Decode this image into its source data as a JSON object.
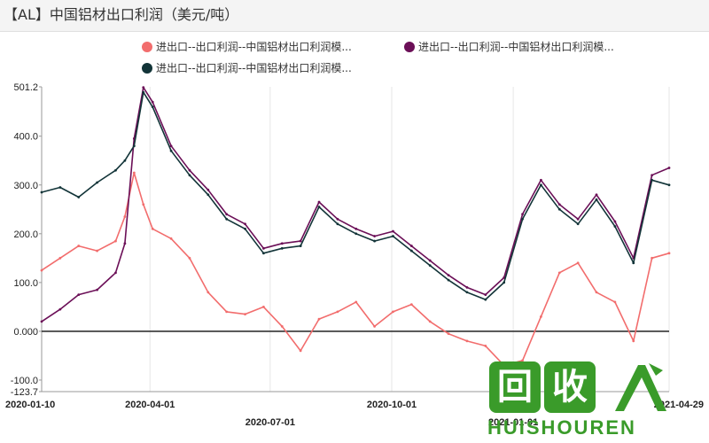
{
  "title": "【AL】中国铝材出口利润（美元/吨）",
  "legend": [
    {
      "label": "进出口--出口利润--中国铝材出口利润模...",
      "color": "#f26d6d"
    },
    {
      "label": "进出口--出口利润--中国铝材出口利润模...",
      "color": "#6b0f57"
    },
    {
      "label": "进出口--出口利润--中国铝材出口利润模...",
      "color": "#123438"
    }
  ],
  "watermark": {
    "glyph1": "回",
    "glyph2": "收",
    "text": "HUISHOUREN"
  },
  "chart_data": {
    "type": "line",
    "title": "【AL】中国铝材出口利润（美元/吨）",
    "xlabel": "",
    "ylabel": "",
    "ylim": [
      -123.7,
      501.2
    ],
    "yticks": [
      -123.7,
      -100.0,
      0.0,
      100.0,
      200.0,
      300.0,
      400.0,
      501.2
    ],
    "ytick_labels": [
      "-123.7",
      "-100.0",
      "0.000",
      "100.0",
      "200.0",
      "300.0",
      "400.0",
      "501.2"
    ],
    "xlim": [
      "2020-01-10",
      "2021-04-29"
    ],
    "xticks": [
      {
        "date": "2020-01-10",
        "label": "2020-01-10",
        "row": 0
      },
      {
        "date": "2020-04-01",
        "label": "2020-04-01",
        "row": 0
      },
      {
        "date": "2020-07-01",
        "label": "2020-07-01",
        "row": 1
      },
      {
        "date": "2020-10-01",
        "label": "2020-10-01",
        "row": 0
      },
      {
        "date": "2021-01-01",
        "label": "2021-01-01",
        "row": 1
      },
      {
        "date": "2021-04-29",
        "label": "2021-04-29",
        "row": 0
      }
    ],
    "grid": "vertical",
    "legend_position": "top",
    "series": [
      {
        "name": "进出口--出口利润--中国铝材出口利润模...",
        "color": "#f26d6d",
        "x": [
          "2020-01-10",
          "2020-01-24",
          "2020-02-07",
          "2020-02-21",
          "2020-03-06",
          "2020-03-13",
          "2020-03-20",
          "2020-03-27",
          "2020-04-03",
          "2020-04-17",
          "2020-05-01",
          "2020-05-15",
          "2020-05-29",
          "2020-06-12",
          "2020-06-26",
          "2020-07-10",
          "2020-07-24",
          "2020-08-07",
          "2020-08-21",
          "2020-09-04",
          "2020-09-18",
          "2020-10-02",
          "2020-10-16",
          "2020-10-30",
          "2020-11-13",
          "2020-11-27",
          "2020-12-11",
          "2020-12-25",
          "2021-01-08",
          "2021-01-22",
          "2021-02-05",
          "2021-02-19",
          "2021-03-05",
          "2021-03-19",
          "2021-04-02",
          "2021-04-16",
          "2021-04-29"
        ],
        "values": [
          125,
          150,
          175,
          165,
          185,
          235,
          325,
          260,
          210,
          190,
          150,
          80,
          40,
          35,
          50,
          10,
          -40,
          25,
          40,
          60,
          10,
          40,
          55,
          20,
          -5,
          -20,
          -30,
          -70,
          -60,
          30,
          120,
          140,
          80,
          60,
          -20,
          150,
          160
        ]
      },
      {
        "name": "进出口--出口利润--中国铝材出口利润模...",
        "color": "#6b0f57",
        "x": [
          "2020-01-10",
          "2020-01-24",
          "2020-02-07",
          "2020-02-21",
          "2020-03-06",
          "2020-03-13",
          "2020-03-20",
          "2020-03-27",
          "2020-04-03",
          "2020-04-17",
          "2020-05-01",
          "2020-05-15",
          "2020-05-29",
          "2020-06-12",
          "2020-06-26",
          "2020-07-10",
          "2020-07-24",
          "2020-08-07",
          "2020-08-21",
          "2020-09-04",
          "2020-09-18",
          "2020-10-02",
          "2020-10-16",
          "2020-10-30",
          "2020-11-13",
          "2020-11-27",
          "2020-12-11",
          "2020-12-25",
          "2021-01-08",
          "2021-01-22",
          "2021-02-05",
          "2021-02-19",
          "2021-03-05",
          "2021-03-19",
          "2021-04-02",
          "2021-04-16",
          "2021-04-29"
        ],
        "values": [
          20,
          45,
          75,
          85,
          120,
          180,
          395,
          500,
          470,
          380,
          330,
          290,
          240,
          220,
          170,
          180,
          185,
          265,
          230,
          210,
          195,
          205,
          175,
          145,
          115,
          90,
          75,
          110,
          240,
          310,
          260,
          230,
          280,
          225,
          150,
          320,
          335
        ]
      },
      {
        "name": "进出口--出口利润--中国铝材出口利润模...",
        "color": "#123438",
        "x": [
          "2020-01-10",
          "2020-01-24",
          "2020-02-07",
          "2020-02-21",
          "2020-03-06",
          "2020-03-13",
          "2020-03-20",
          "2020-03-27",
          "2020-04-03",
          "2020-04-17",
          "2020-05-01",
          "2020-05-15",
          "2020-05-29",
          "2020-06-12",
          "2020-06-26",
          "2020-07-10",
          "2020-07-24",
          "2020-08-07",
          "2020-08-21",
          "2020-09-04",
          "2020-09-18",
          "2020-10-02",
          "2020-10-16",
          "2020-10-30",
          "2020-11-13",
          "2020-11-27",
          "2020-12-11",
          "2020-12-25",
          "2021-01-08",
          "2021-01-22",
          "2021-02-05",
          "2021-02-19",
          "2021-03-05",
          "2021-03-19",
          "2021-04-02",
          "2021-04-16",
          "2021-04-29"
        ],
        "values": [
          285,
          295,
          275,
          305,
          330,
          350,
          380,
          490,
          460,
          370,
          320,
          280,
          230,
          210,
          160,
          170,
          175,
          255,
          220,
          200,
          185,
          195,
          165,
          135,
          105,
          80,
          65,
          100,
          230,
          300,
          250,
          220,
          270,
          215,
          140,
          310,
          300
        ]
      }
    ]
  }
}
